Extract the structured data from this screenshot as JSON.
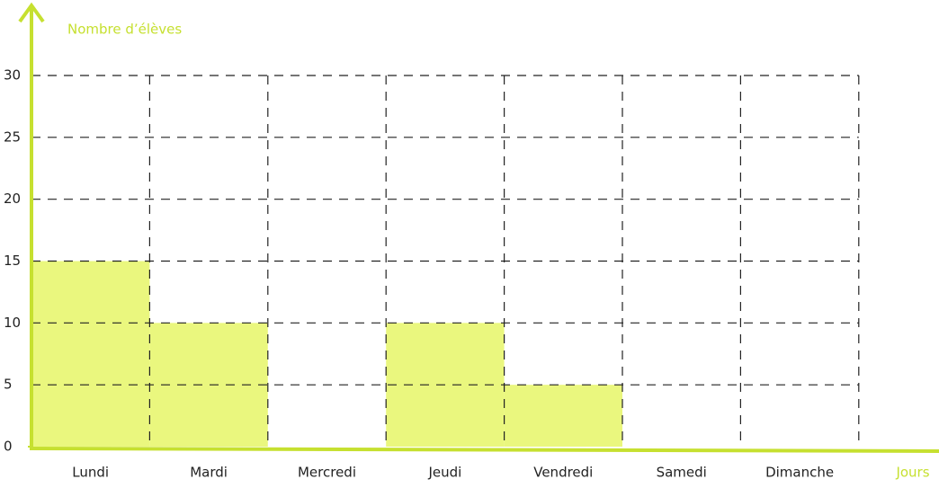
{
  "chart_data": {
    "type": "bar",
    "y_label": "Nombre d’élèves",
    "x_label": "Jours",
    "categories": [
      "Lundi",
      "Mardi",
      "Mercredi",
      "Jeudi",
      "Vendredi",
      "Samedi",
      "Dimanche"
    ],
    "values": [
      15,
      10,
      0,
      10,
      5,
      0,
      0
    ],
    "color": "#eaf77e",
    "axis_color": "#c6e030",
    "ylim": [
      0,
      30
    ],
    "yticks": [
      0,
      5,
      10,
      15,
      20,
      25,
      30
    ],
    "grid": true
  }
}
